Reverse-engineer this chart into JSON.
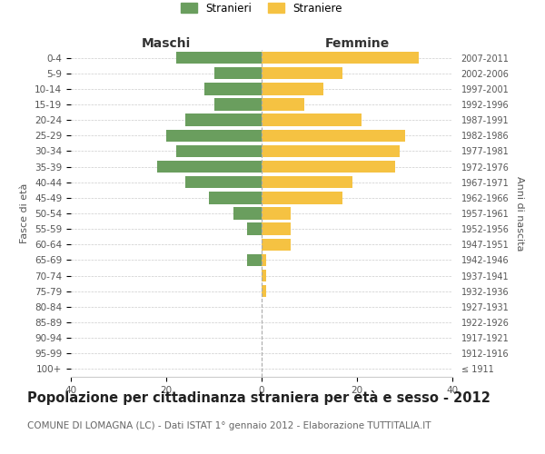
{
  "age_groups": [
    "100+",
    "95-99",
    "90-94",
    "85-89",
    "80-84",
    "75-79",
    "70-74",
    "65-69",
    "60-64",
    "55-59",
    "50-54",
    "45-49",
    "40-44",
    "35-39",
    "30-34",
    "25-29",
    "20-24",
    "15-19",
    "10-14",
    "5-9",
    "0-4"
  ],
  "birth_years": [
    "≤ 1911",
    "1912-1916",
    "1917-1921",
    "1922-1926",
    "1927-1931",
    "1932-1936",
    "1937-1941",
    "1942-1946",
    "1947-1951",
    "1952-1956",
    "1957-1961",
    "1962-1966",
    "1967-1971",
    "1972-1976",
    "1977-1981",
    "1982-1986",
    "1987-1991",
    "1992-1996",
    "1997-2001",
    "2002-2006",
    "2007-2011"
  ],
  "maschi": [
    0,
    0,
    0,
    0,
    0,
    0,
    0,
    3,
    0,
    3,
    6,
    11,
    16,
    22,
    18,
    20,
    16,
    10,
    12,
    10,
    18
  ],
  "femmine": [
    0,
    0,
    0,
    0,
    0,
    1,
    1,
    1,
    6,
    6,
    6,
    17,
    19,
    28,
    29,
    30,
    21,
    9,
    13,
    17,
    33
  ],
  "maschi_color": "#6a9e5e",
  "femmine_color": "#f5c242",
  "title": "Popolazione per cittadinanza straniera per età e sesso - 2012",
  "subtitle": "COMUNE DI LOMAGNA (LC) - Dati ISTAT 1° gennaio 2012 - Elaborazione TUTTITALIA.IT",
  "ylabel_left": "Fasce di età",
  "ylabel_right": "Anni di nascita",
  "xlabel_left": "Maschi",
  "xlabel_right": "Femmine",
  "legend_maschi": "Stranieri",
  "legend_femmine": "Straniere",
  "xlim": 40,
  "background_color": "#ffffff",
  "grid_color": "#cccccc",
  "title_fontsize": 10.5,
  "subtitle_fontsize": 7.5,
  "label_fontsize": 8,
  "tick_fontsize": 7.5
}
